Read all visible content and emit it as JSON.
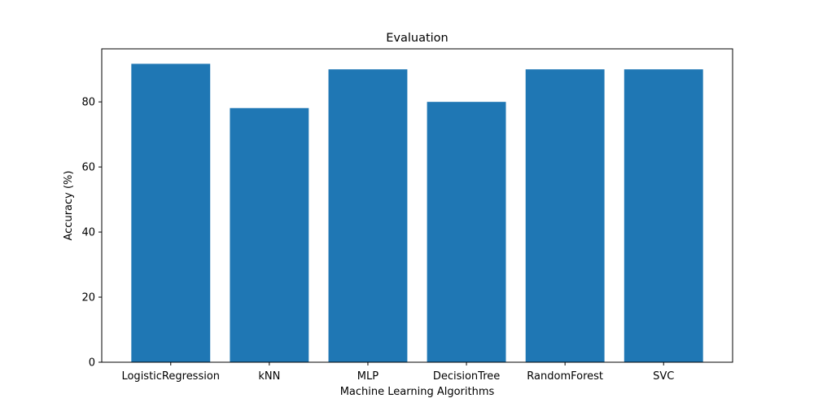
{
  "chart_data": {
    "type": "bar",
    "title": "Evaluation",
    "xlabel": "Machine Learning Algorithms",
    "ylabel": "Accuracy (%)",
    "categories": [
      "LogisticRegression",
      "kNN",
      "MLP",
      "DecisionTree",
      "RandomForest",
      "SVC"
    ],
    "values": [
      91.7,
      78.1,
      90.0,
      80.0,
      90.0,
      90.0
    ],
    "ylim": [
      0,
      96.3
    ],
    "yticks": [
      0,
      20,
      40,
      60,
      80
    ],
    "bar_color": "#1f77b4",
    "grid": false,
    "legend": "none"
  }
}
